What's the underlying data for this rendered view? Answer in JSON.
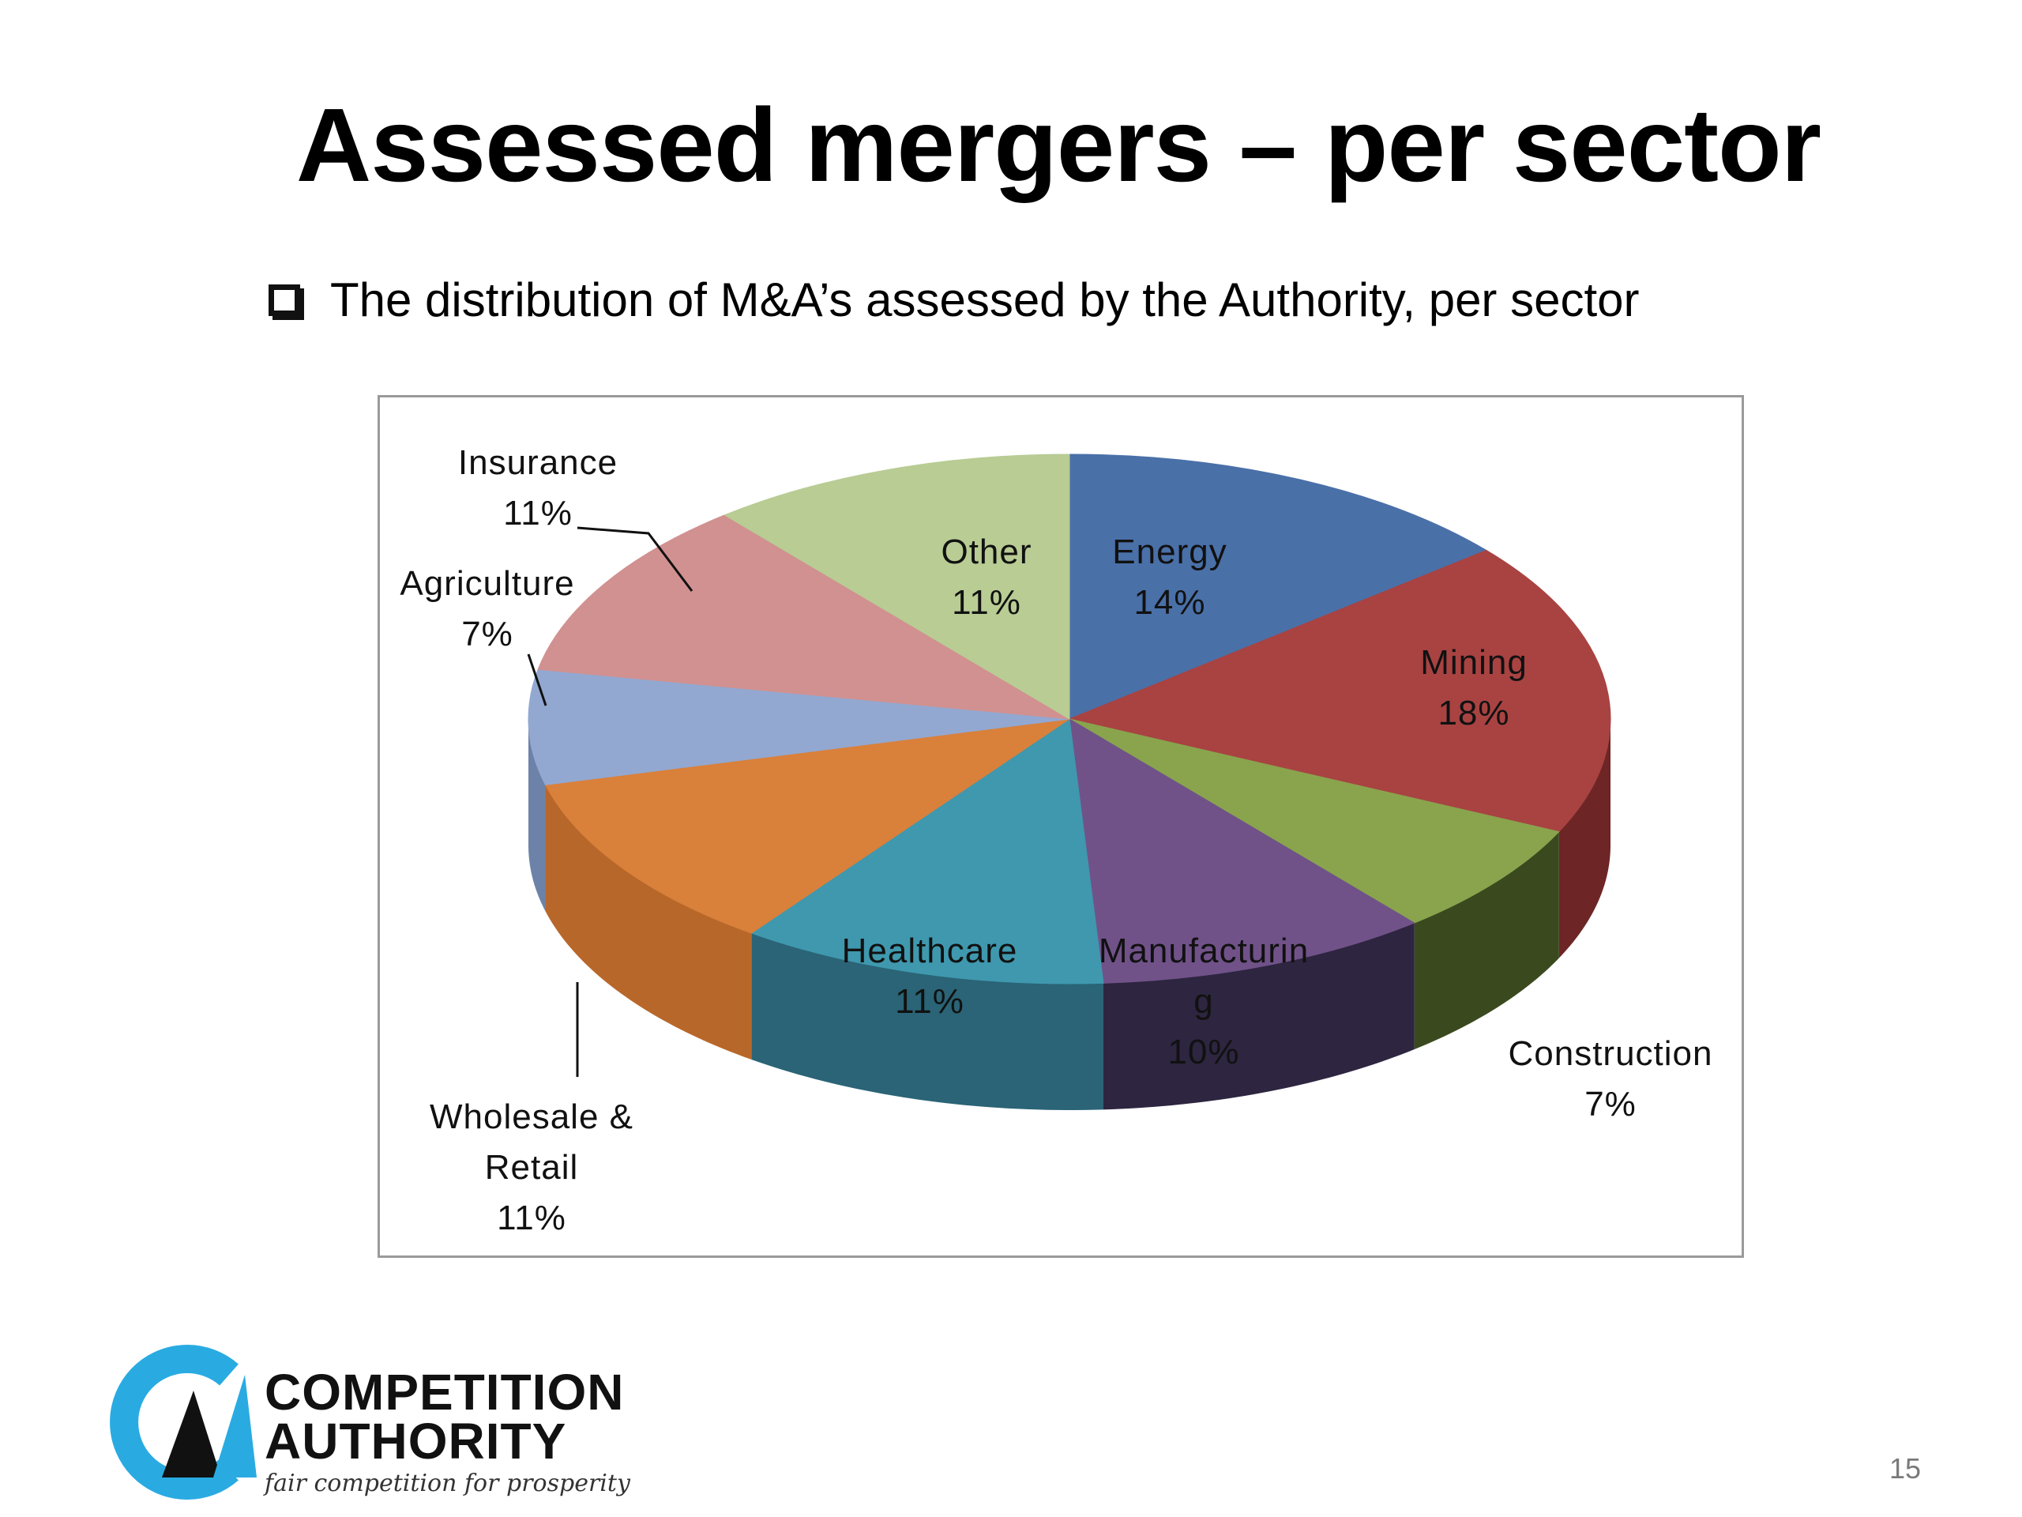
{
  "slide": {
    "title": "Assessed mergers – per sector",
    "bullet": "The distribution of M&A’s assessed by the Authority, per sector",
    "page_number": "15"
  },
  "logo": {
    "line1": "COMPETITION",
    "line2": "AUTHORITY",
    "tagline": "fair competition for prosperity",
    "colors": {
      "arc": "#29abe2",
      "triangle": "#111111"
    }
  },
  "chart_data": {
    "type": "pie",
    "title": "",
    "style": "3d-exploded-none",
    "start_angle_deg": 0,
    "slices": [
      {
        "label": "Energy",
        "pct_label": "14%",
        "value": 14,
        "color": "#4a70a8",
        "side": "#2f4d78"
      },
      {
        "label": "Mining",
        "pct_label": "18%",
        "value": 18,
        "color": "#a84342",
        "side": "#6e2525"
      },
      {
        "label": "Construction",
        "pct_label": "7%",
        "value": 7,
        "color": "#89a44d",
        "side": "#3a4a1e"
      },
      {
        "label": "Manufacturin g",
        "pct_label": "10%",
        "value": 10,
        "color": "#705289",
        "side": "#2e2540"
      },
      {
        "label": "Healthcare",
        "pct_label": "11%",
        "value": 11,
        "color": "#3f98ae",
        "side": "#2a6476"
      },
      {
        "label": "Wholesale & Retail",
        "pct_label": "11%",
        "value": 11,
        "color": "#d9803b",
        "side": "#b8672a"
      },
      {
        "label": "Agriculture",
        "pct_label": "7%",
        "value": 7,
        "color": "#92a8d1",
        "side": "#6d82a8"
      },
      {
        "label": "Insurance",
        "pct_label": "11%",
        "value": 11,
        "color": "#d19190",
        "side": "#a86e6d"
      },
      {
        "label": "Other",
        "pct_label": "11%",
        "value": 11,
        "color": "#b8cc94",
        "side": "#8ea36b"
      }
    ]
  }
}
